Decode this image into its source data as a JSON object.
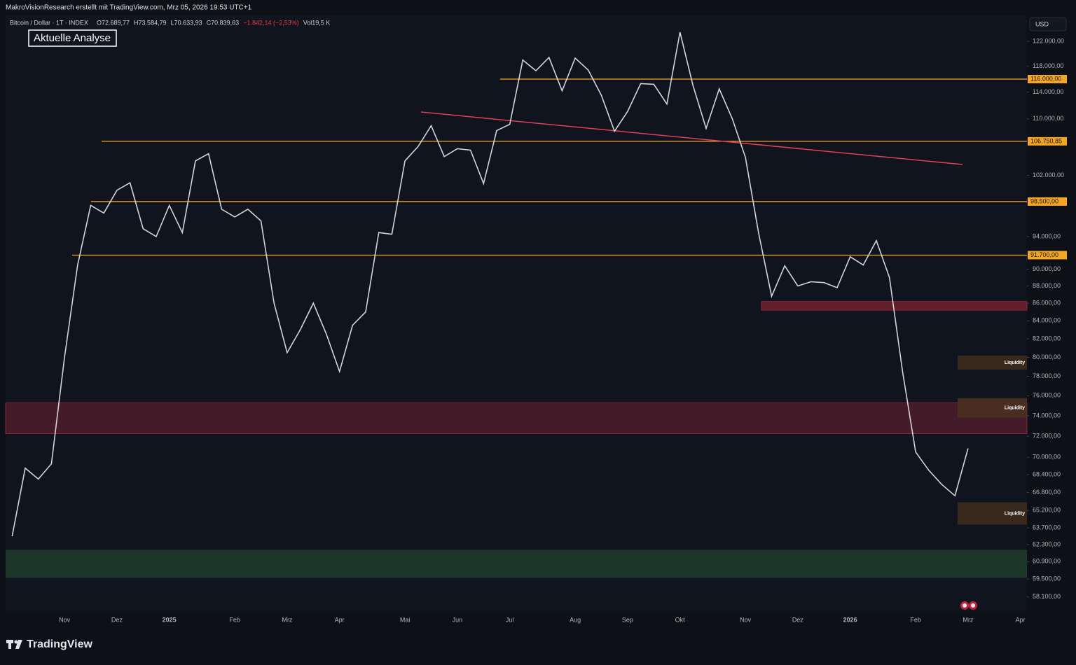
{
  "header": "MakroVisionResearch erstellt mit TradingView.com, Mrz 05, 2026 19:53 UTC+1",
  "footer": "TradingView",
  "currency": "USD",
  "chart_data": {
    "type": "line",
    "symbol": "Bitcoin / Dollar · 1T · INDEX",
    "ohlc": [
      "O72.689,77",
      "H73.584,79",
      "L70.633,93",
      "C70.839,63",
      "−1.842,14 (−2,53%)",
      "Vol19,5 K"
    ],
    "annotation": "Aktuelle Analyse",
    "log_scale": true,
    "categories": [
      null,
      null,
      null,
      null,
      "Nov",
      null,
      null,
      null,
      "Dez",
      null,
      null,
      null,
      "2025",
      null,
      null,
      null,
      null,
      "Feb",
      null,
      null,
      null,
      "Mrz",
      null,
      null,
      null,
      "Apr",
      null,
      null,
      null,
      null,
      "Mai",
      null,
      null,
      null,
      "Jun",
      null,
      null,
      null,
      "Jul",
      null,
      null,
      null,
      null,
      "Aug",
      null,
      null,
      null,
      "Sep",
      null,
      null,
      null,
      "Okt",
      null,
      null,
      null,
      null,
      "Nov",
      null,
      null,
      null,
      "Dez",
      null,
      null,
      null,
      "2026",
      null,
      null,
      null,
      null,
      "Feb",
      null,
      null,
      null,
      "Mrz",
      null,
      null,
      null,
      "Apr"
    ],
    "series": [
      {
        "name": "Bitcoin / Dollar",
        "color": "#d1d4dc",
        "values": [
          63000,
          69000,
          68000,
          69400,
          80000,
          90500,
          98000,
          97000,
          100000,
          101000,
          95000,
          94000,
          98000,
          94500,
          104000,
          105000,
          97500,
          96500,
          97500,
          96000,
          86000,
          80500,
          83000,
          86000,
          82500,
          78500,
          83500,
          85000,
          94500,
          94300,
          104000,
          106000,
          109000,
          104600,
          105700,
          105500,
          100900,
          108300,
          109200,
          119000,
          117300,
          119400,
          114200,
          119300,
          117400,
          113500,
          108200,
          111100,
          115300,
          115200,
          112200,
          123500,
          115000,
          108600,
          114500,
          110000,
          104500,
          94500,
          86800,
          90400,
          88000,
          88500,
          88400,
          87800,
          91500,
          90500,
          93500,
          89000,
          78500,
          70500,
          68800,
          67500,
          66500,
          70839.63,
          null,
          null,
          null,
          null
        ]
      }
    ],
    "ylim": [
      56900,
      126300
    ],
    "yticks": [
      {
        "value": 122000,
        "label": "122.000,00"
      },
      {
        "value": 118000,
        "label": "118.000,00"
      },
      {
        "value": 114000,
        "label": "114.000,00"
      },
      {
        "value": 110000,
        "label": "110.000,00"
      },
      {
        "value": 102000,
        "label": "102.000,00"
      },
      {
        "value": 94000,
        "label": "94.000,00"
      },
      {
        "value": 90000,
        "label": "90.000,00"
      },
      {
        "value": 88000,
        "label": "88.000,00"
      },
      {
        "value": 86000,
        "label": "86.000,00"
      },
      {
        "value": 84000,
        "label": "84.000,00"
      },
      {
        "value": 82000,
        "label": "82.000,00"
      },
      {
        "value": 80000,
        "label": "80.000,00"
      },
      {
        "value": 78000,
        "label": "78.000,00"
      },
      {
        "value": 76000,
        "label": "76.000,00"
      },
      {
        "value": 74000,
        "label": "74.000,00"
      },
      {
        "value": 72000,
        "label": "72.000,00"
      },
      {
        "value": 70000,
        "label": "70.000,00"
      },
      {
        "value": 68400,
        "label": "68.400,00"
      },
      {
        "value": 66800,
        "label": "66.800,00"
      },
      {
        "value": 65200,
        "label": "65.200,00"
      },
      {
        "value": 63700,
        "label": "63.700,00"
      },
      {
        "value": 62300,
        "label": "62.300,00"
      },
      {
        "value": 60900,
        "label": "60.900,00"
      },
      {
        "value": 59500,
        "label": "59.500,00"
      },
      {
        "value": 58100,
        "label": "58.100,00"
      }
    ],
    "levels": [
      {
        "value": 116000,
        "label": "116.000,00",
        "color": "#f5a623"
      },
      {
        "value": 106750.85,
        "label": "106.750,85",
        "color": "#f5a623"
      },
      {
        "value": 98500,
        "label": "98.500,00",
        "color": "#f5a623"
      },
      {
        "value": 91700,
        "label": "91.700,00",
        "color": "#f5a623"
      }
    ],
    "zones": [
      {
        "low": 72240,
        "high": 75270,
        "color": "#4a1d2a"
      },
      {
        "low": 85200,
        "high": 86200,
        "color": "#6b1e2c"
      },
      {
        "low": 59590,
        "high": 61860,
        "color": "#1e3a2b"
      },
      {
        "low": 78700,
        "high": 80200,
        "color": "#3d2b1c",
        "label": "Liquidity"
      },
      {
        "low": 73810,
        "high": 75760,
        "color": "#4a3020",
        "label": "Liquidity"
      },
      {
        "low": 63980,
        "high": 65920,
        "color": "#3d2b1c",
        "label": "Liquidity"
      }
    ]
  }
}
